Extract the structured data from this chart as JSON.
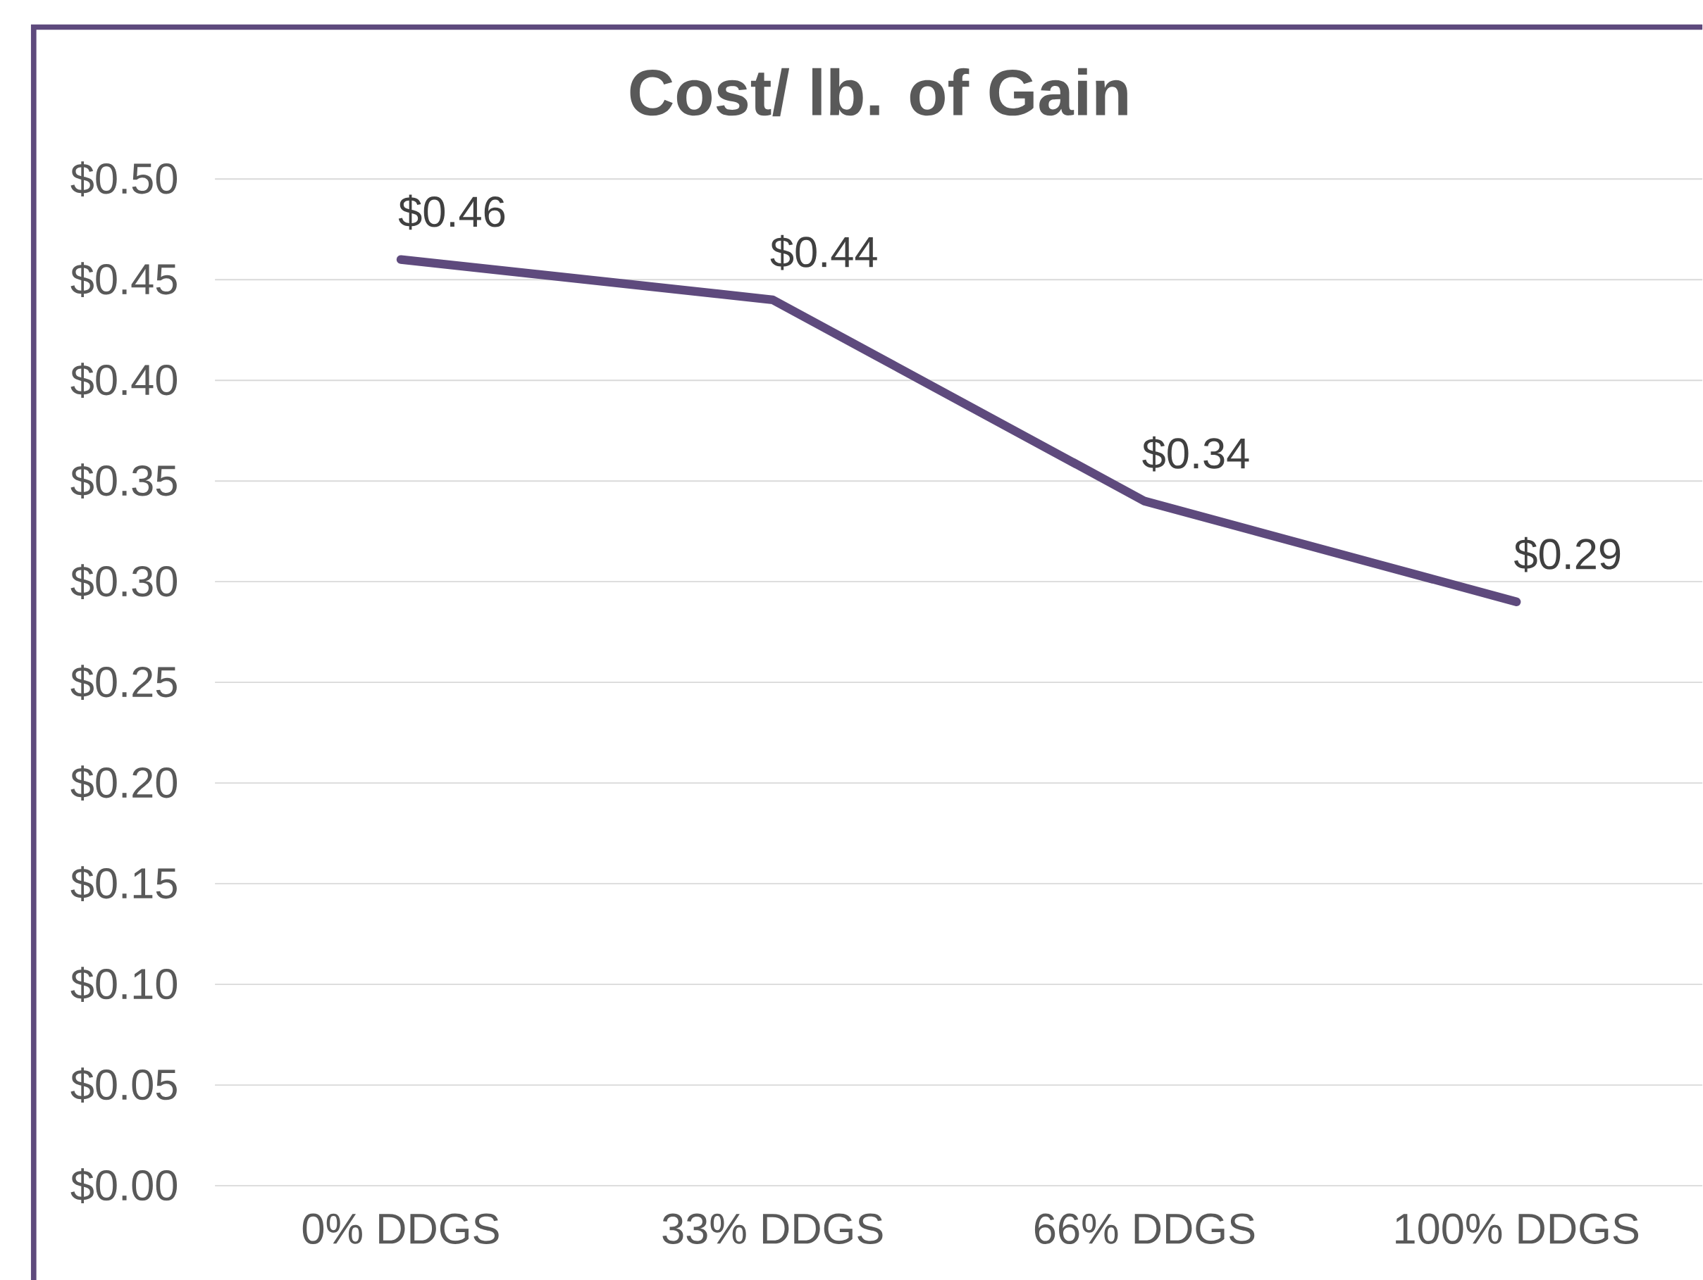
{
  "chart_data": {
    "type": "line",
    "title": "Cost/ lb. of Gain",
    "categories": [
      "0% DDGS",
      "33% DDGS",
      "66% DDGS",
      "100% DDGS"
    ],
    "values": [
      0.46,
      0.44,
      0.34,
      0.29
    ],
    "value_labels": [
      "$0.46",
      "$0.44",
      "$0.34",
      "$0.29"
    ],
    "color": "#5e4a7d",
    "ylim": [
      0,
      0.5
    ],
    "yticks": [
      {
        "value": 0,
        "label": "$0.00"
      },
      {
        "value": 0.05,
        "label": "$0.05"
      },
      {
        "value": 0.1,
        "label": "$0.10"
      },
      {
        "value": 0.15,
        "label": "$0.15"
      },
      {
        "value": 0.2,
        "label": "$0.20"
      },
      {
        "value": 0.25,
        "label": "$0.25"
      },
      {
        "value": 0.3,
        "label": "$0.30"
      },
      {
        "value": 0.35,
        "label": "$0.35"
      },
      {
        "value": 0.4,
        "label": "$0.40"
      },
      {
        "value": 0.45,
        "label": "$0.45"
      },
      {
        "value": 0.5,
        "label": "$0.50"
      }
    ],
    "grid": "y",
    "marker": "none",
    "line_style": "solid"
  }
}
